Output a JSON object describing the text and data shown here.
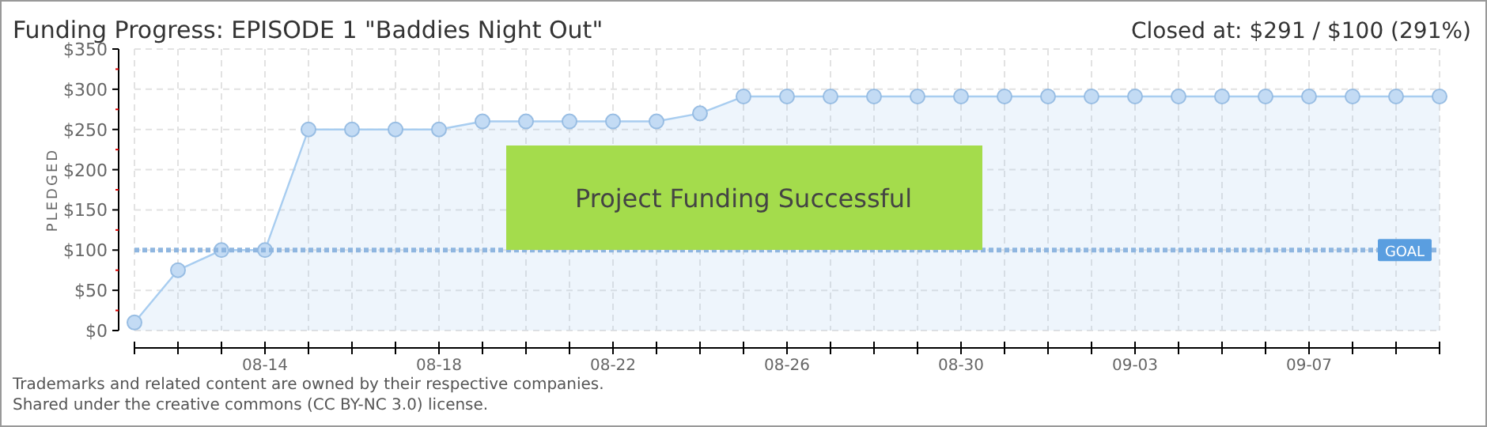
{
  "chart_data": {
    "type": "area",
    "title": "Funding Progress: EPISODE 1 \"Baddies Night Out\"",
    "subtitle": "Closed at:  $291 / $100 (291%)",
    "ylabel": "PLEDGED",
    "x": [
      "--08-11",
      "--08-12",
      "--08-13",
      "--08-14",
      "--08-15",
      "--08-16",
      "--08-17",
      "--08-18",
      "--08-19",
      "--08-20",
      "--08-21",
      "--08-22",
      "--08-23",
      "--08-24",
      "--08-25",
      "--08-26",
      "--08-27",
      "--08-28",
      "--08-29",
      "--08-30",
      "--08-31",
      "--09-01",
      "--09-02",
      "--09-03",
      "--09-04",
      "--09-05",
      "--09-06",
      "--09-07",
      "--09-08",
      "--09-09",
      "--09-10"
    ],
    "series": [
      {
        "color": "#a8cdf0",
        "values": [
          10,
          75,
          100,
          100,
          250,
          250,
          250,
          250,
          260,
          260,
          260,
          260,
          260,
          270,
          291,
          291,
          291,
          291,
          291,
          291,
          291,
          291,
          291,
          291,
          291,
          291,
          291,
          291,
          291,
          291,
          291
        ]
      }
    ],
    "xlim": [
      "--08-11",
      "--09-10"
    ],
    "xticks": [
      {
        "value": "--08-11",
        "label": null
      },
      {
        "value": "--08-12",
        "label": null
      },
      {
        "value": "--08-13",
        "label": null
      },
      {
        "value": "--08-14",
        "label": "08-14"
      },
      {
        "value": "--08-15",
        "label": null
      },
      {
        "value": "--08-16",
        "label": null
      },
      {
        "value": "--08-17",
        "label": null
      },
      {
        "value": "--08-18",
        "label": "08-18"
      },
      {
        "value": "--08-19",
        "label": null
      },
      {
        "value": "--08-20",
        "label": null
      },
      {
        "value": "--08-21",
        "label": null
      },
      {
        "value": "--08-22",
        "label": "08-22"
      },
      {
        "value": "--08-23",
        "label": null
      },
      {
        "value": "--08-24",
        "label": null
      },
      {
        "value": "--08-25",
        "label": null
      },
      {
        "value": "--08-26",
        "label": "08-26"
      },
      {
        "value": "--08-27",
        "label": null
      },
      {
        "value": "--08-28",
        "label": null
      },
      {
        "value": "--08-29",
        "label": null
      },
      {
        "value": "--08-30",
        "label": "08-30"
      },
      {
        "value": "--08-31",
        "label": null
      },
      {
        "value": "--09-01",
        "label": null
      },
      {
        "value": "--09-02",
        "label": null
      },
      {
        "value": "--09-03",
        "label": "09-03"
      },
      {
        "value": "--09-04",
        "label": null
      },
      {
        "value": "--09-05",
        "label": null
      },
      {
        "value": "--09-06",
        "label": null
      },
      {
        "value": "--09-07",
        "label": "09-07"
      },
      {
        "value": "--09-08",
        "label": null
      },
      {
        "value": "--09-09",
        "label": null
      },
      {
        "value": "--09-10",
        "label": null
      }
    ],
    "ylim": [
      0,
      350
    ],
    "yticks": [
      {
        "value": 0,
        "label": "$0"
      },
      {
        "value": 25,
        "label": null
      },
      {
        "value": 50,
        "label": "$50"
      },
      {
        "value": 75,
        "label": null
      },
      {
        "value": 100,
        "label": "$100"
      },
      {
        "value": 125,
        "label": null
      },
      {
        "value": 150,
        "label": "$150"
      },
      {
        "value": 175,
        "label": null
      },
      {
        "value": 200,
        "label": "$200"
      },
      {
        "value": 225,
        "label": null
      },
      {
        "value": 250,
        "label": "$250"
      },
      {
        "value": 275,
        "label": null
      },
      {
        "value": 300,
        "label": "$300"
      },
      {
        "value": 325,
        "label": null
      },
      {
        "value": 350,
        "label": "$350"
      }
    ],
    "grid": true,
    "marker": "circle",
    "line_style": "solid",
    "ref_lines": [
      {
        "axis": "y",
        "value": 100,
        "label": "GOAL",
        "color": "#8fb6e0",
        "line_style": "dotted"
      }
    ],
    "annotations": [
      "Project Funding Successful",
      "Trademarks and related content are owned by their respective companies.",
      "Shared under the creative commons (CC BY-NC 3.0) license."
    ]
  }
}
